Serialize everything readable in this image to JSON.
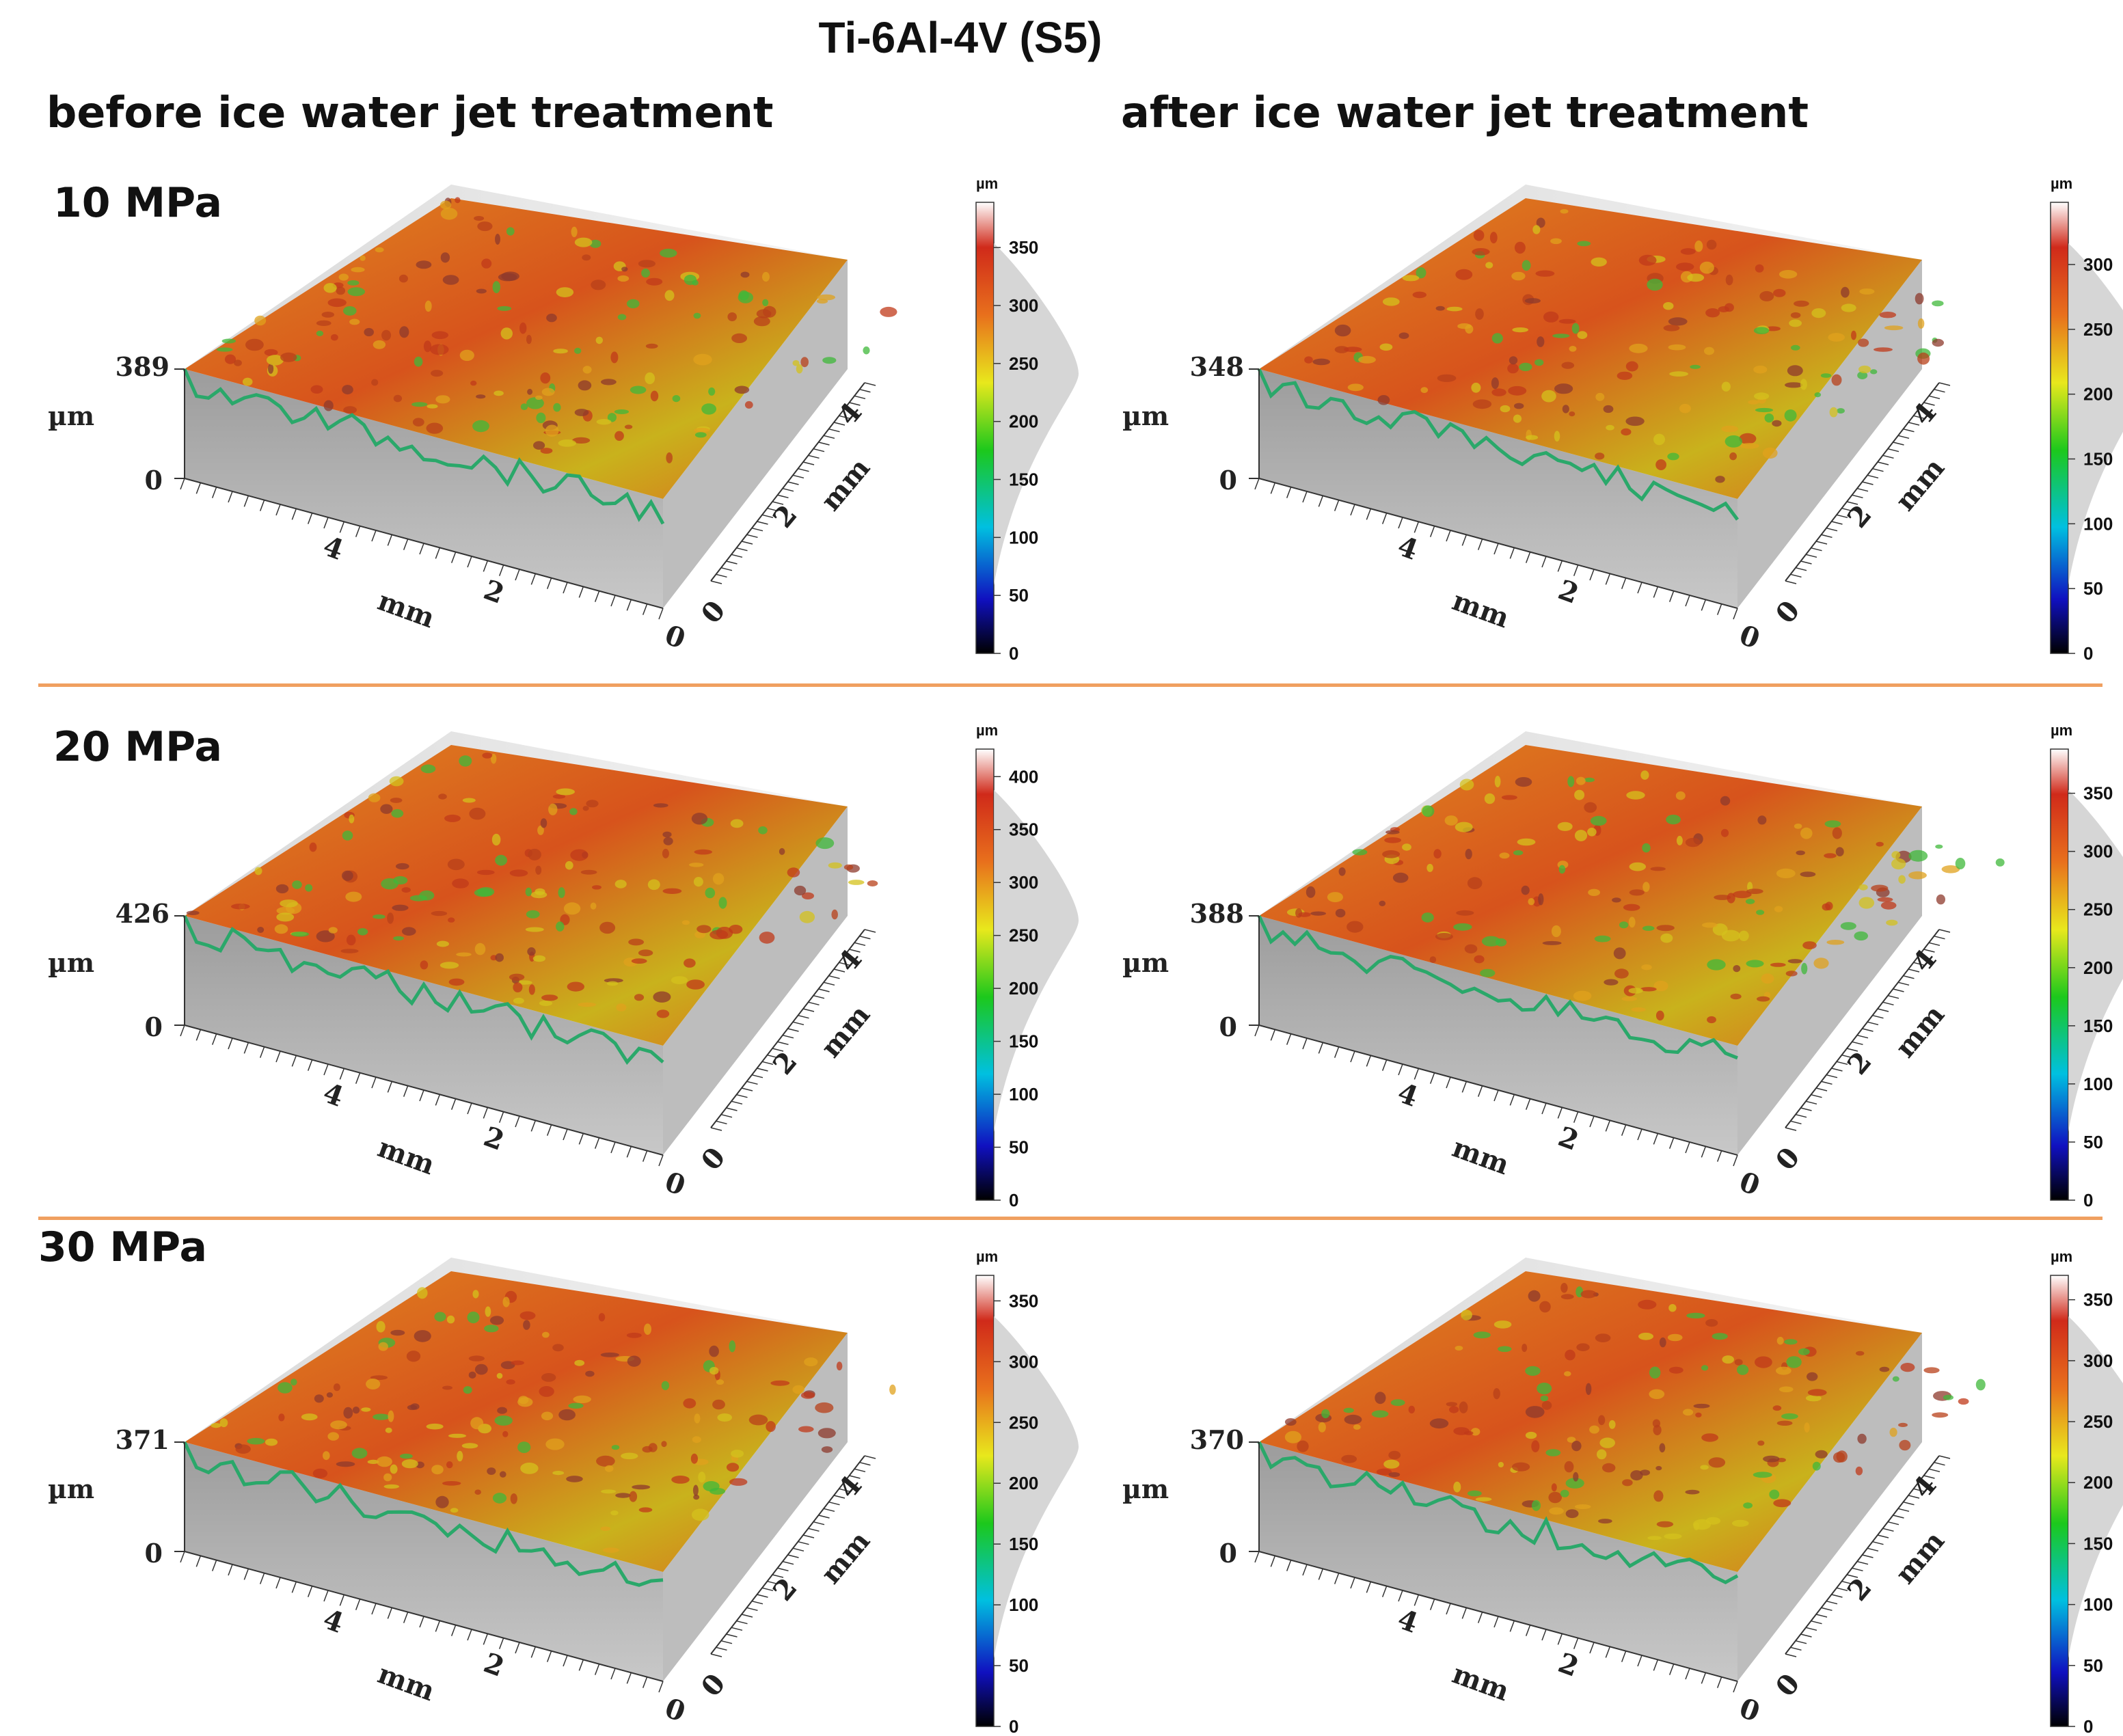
{
  "figure": {
    "title": "Ti-6Al-4V (S5)",
    "column_titles": {
      "before": "before ice water jet treatment",
      "after": "after ice water jet treatment"
    },
    "row_labels": [
      "10 MPa",
      "20 MPa",
      "30 MPa"
    ],
    "axis_unit_label": "mm",
    "height_unit_label": "µm",
    "colorbar_unit_label": "µm",
    "xy_ticks": [
      "0",
      "2",
      "4"
    ],
    "colors": {
      "divider": "#f0a060",
      "surface_peak": "#d04a1a",
      "surface_mid": "#e8c41a",
      "surface_low": "#2bb34a"
    }
  },
  "panels": [
    {
      "row": "10 MPa",
      "state": "before",
      "z_max": "389",
      "z_min": "0",
      "colorbar_ticks": [
        "0",
        "50",
        "100",
        "150",
        "200",
        "250",
        "300",
        "350"
      ],
      "colorbar_max": 389
    },
    {
      "row": "10 MPa",
      "state": "after",
      "z_max": "348",
      "z_min": "0",
      "colorbar_ticks": [
        "0",
        "50",
        "100",
        "150",
        "200",
        "250",
        "300"
      ],
      "colorbar_max": 348
    },
    {
      "row": "20 MPa",
      "state": "before",
      "z_max": "426",
      "z_min": "0",
      "colorbar_ticks": [
        "0",
        "50",
        "100",
        "150",
        "200",
        "250",
        "300",
        "350",
        "400"
      ],
      "colorbar_max": 426
    },
    {
      "row": "20 MPa",
      "state": "after",
      "z_max": "388",
      "z_min": "0",
      "colorbar_ticks": [
        "0",
        "50",
        "100",
        "150",
        "200",
        "250",
        "300",
        "350"
      ],
      "colorbar_max": 388
    },
    {
      "row": "30 MPa",
      "state": "before",
      "z_max": "371",
      "z_min": "0",
      "colorbar_ticks": [
        "0",
        "50",
        "100",
        "150",
        "200",
        "250",
        "300",
        "350"
      ],
      "colorbar_max": 371
    },
    {
      "row": "30 MPa",
      "state": "after",
      "z_max": "370",
      "z_min": "0",
      "colorbar_ticks": [
        "0",
        "50",
        "100",
        "150",
        "200",
        "250",
        "300",
        "350"
      ],
      "colorbar_max": 370
    }
  ]
}
